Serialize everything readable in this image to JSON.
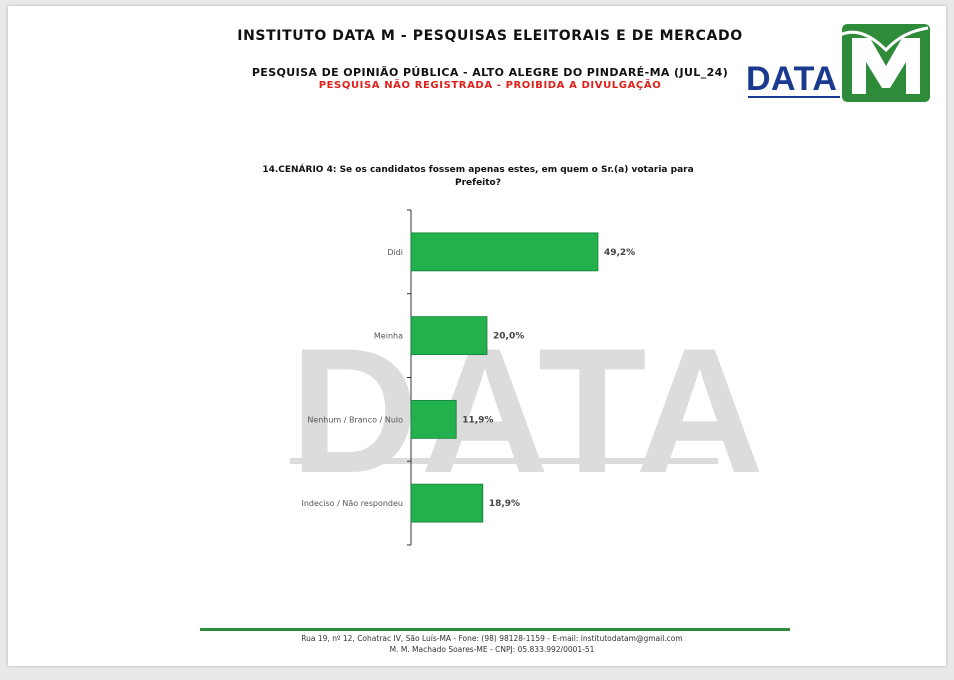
{
  "header": {
    "title": "INSTITUTO DATA M - PESQUISAS ELEITORAIS E DE MERCADO",
    "subtitle": "PESQUISA DE OPINIÃO PÚBLICA - ALTO ALEGRE DO PINDARÉ-MA (JUL_24)",
    "warning": "PESQUISA NÃO REGISTRADA - PROIBIDA A DIVULGAÇÃO"
  },
  "logo": {
    "text": "DATA",
    "mark": "M",
    "colors": {
      "blue": "#1a3a8f",
      "green": "#2e8b3a"
    }
  },
  "watermark": {
    "text": "DATA"
  },
  "chart_data": {
    "type": "bar",
    "orientation": "horizontal",
    "title": "14.CENÁRIO 4: Se os candidatos fossem apenas estes, em quem o Sr.(a) votaria para Prefeito?",
    "categories": [
      "Didi",
      "Meinha",
      "Nenhum / Branco / Nulo",
      "Indeciso / Não respondeu"
    ],
    "values": [
      49.2,
      20.0,
      11.9,
      18.9
    ],
    "value_labels": [
      "49,2%",
      "20,0%",
      "11,9%",
      "18,9%"
    ],
    "xlim": [
      0,
      100
    ],
    "bar_color": "#22b14c",
    "grid": false,
    "legend": "none"
  },
  "footer": {
    "line1": "Rua 19, nº 12, Cohatrac IV, São Luís-MA - Fone: (98) 98128-1159 - E-mail: institutodatam@gmail.com",
    "line2": "M. M. Machado Soares-ME - CNPJ: 05.833.992/0001-51"
  }
}
